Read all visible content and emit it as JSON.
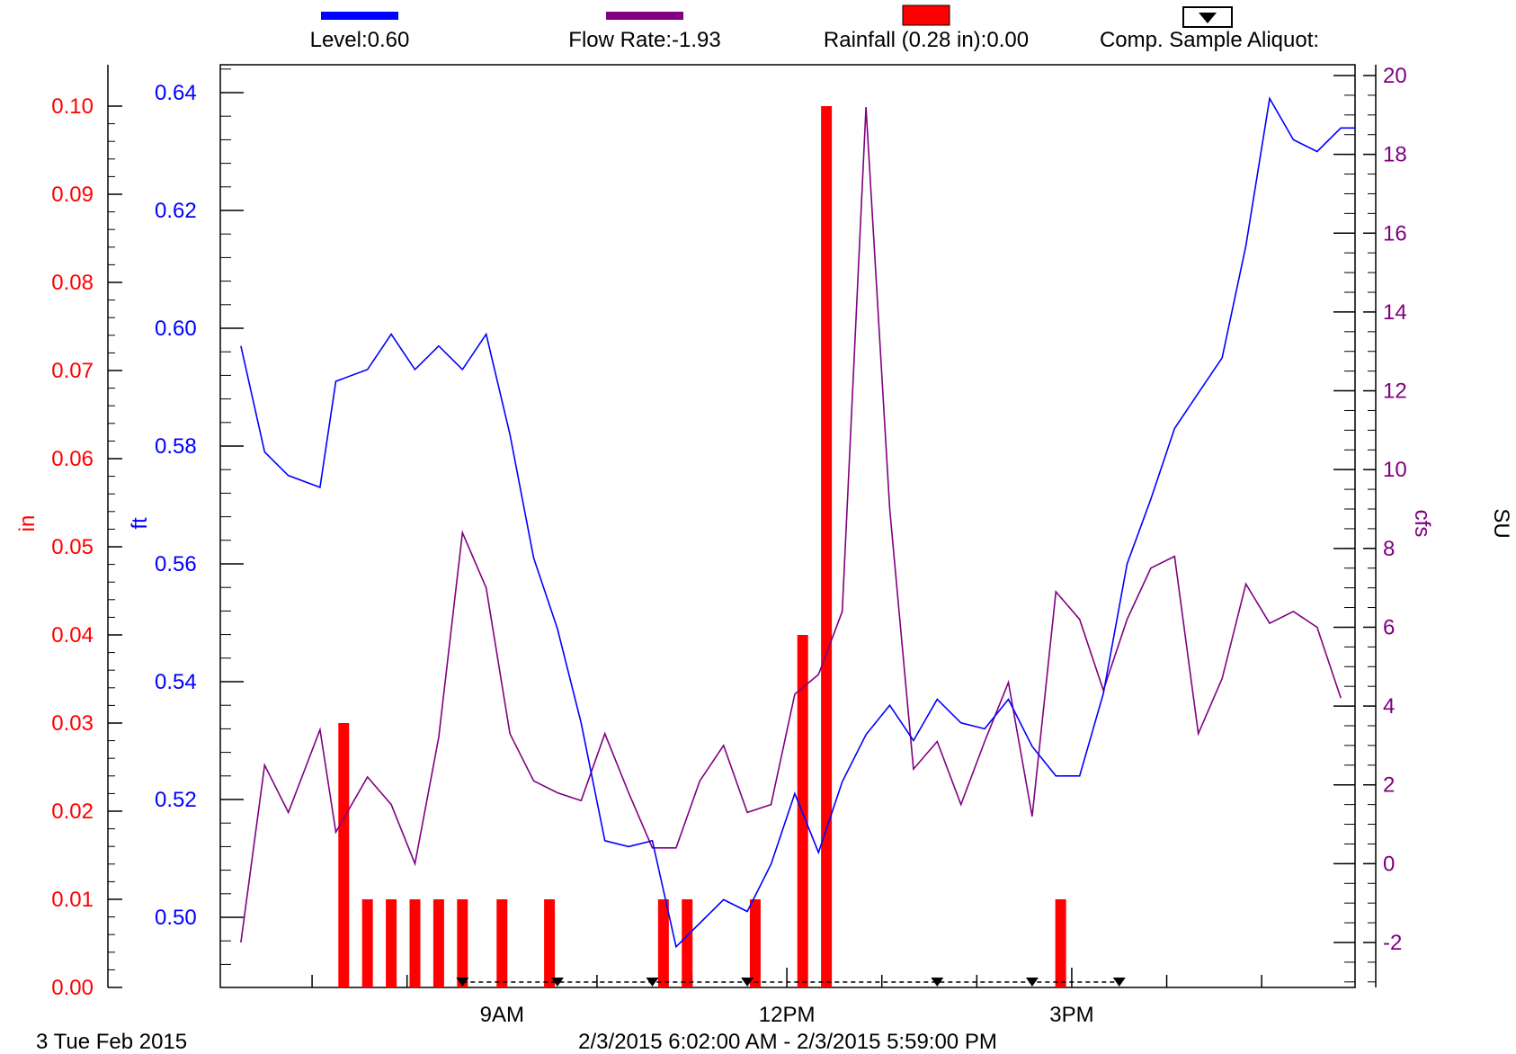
{
  "legend": [
    {
      "id": "level",
      "label": "Level:0.60",
      "color": "#0000ff",
      "kind": "line"
    },
    {
      "id": "flow",
      "label": "Flow Rate:-1.93",
      "color": "#800080",
      "kind": "line"
    },
    {
      "id": "rain",
      "label": "Rainfall (0.28 in):0.00",
      "color": "#ff0000",
      "kind": "bar"
    },
    {
      "id": "comp",
      "label": "Comp. Sample Aliquot:",
      "color": "#000000",
      "kind": "marker"
    }
  ],
  "footer": {
    "date": "3 Tue Feb 2015",
    "range": "2/3/2015 6:02:00 AM - 2/3/2015 5:59:00 PM"
  },
  "chart_data": {
    "type": "line",
    "x_unit": "time",
    "x_range": [
      "06:02",
      "17:59"
    ],
    "x_ticks": [
      {
        "time": "09:00",
        "label": "9AM"
      },
      {
        "time": "12:00",
        "label": "12PM"
      },
      {
        "time": "15:00",
        "label": "3PM"
      }
    ],
    "axes": {
      "rain": {
        "label": "in",
        "color": "#ff0000",
        "range": [
          0,
          0.1
        ],
        "ticks": [
          "0.00",
          "0.01",
          "0.02",
          "0.03",
          "0.04",
          "0.05",
          "0.06",
          "0.07",
          "0.08",
          "0.09",
          "0.10"
        ]
      },
      "level": {
        "label": "ft",
        "color": "#0000ff",
        "range": [
          0.5,
          0.64
        ],
        "ticks": [
          "0.50",
          "0.52",
          "0.54",
          "0.56",
          "0.58",
          "0.60",
          "0.62",
          "0.64"
        ]
      },
      "flow": {
        "label": "cfs",
        "color": "#800080",
        "range": [
          -2,
          20
        ],
        "ticks": [
          "-2",
          "0",
          "2",
          "4",
          "6",
          "8",
          "10",
          "12",
          "14",
          "16",
          "18",
          "20"
        ]
      },
      "su": {
        "label": "SU",
        "color": "#000000"
      }
    },
    "grid": false,
    "series": [
      {
        "name": "Level",
        "axis": "level",
        "color": "#0000ff",
        "points": [
          [
            "06:15",
            0.597
          ],
          [
            "06:30",
            0.579
          ],
          [
            "06:45",
            0.575
          ],
          [
            "07:05",
            0.573
          ],
          [
            "07:15",
            0.591
          ],
          [
            "07:35",
            0.593
          ],
          [
            "07:50",
            0.599
          ],
          [
            "08:05",
            0.593
          ],
          [
            "08:20",
            0.597
          ],
          [
            "08:35",
            0.593
          ],
          [
            "08:50",
            0.599
          ],
          [
            "09:05",
            0.582
          ],
          [
            "09:20",
            0.561
          ],
          [
            "09:35",
            0.549
          ],
          [
            "09:50",
            0.533
          ],
          [
            "10:05",
            0.513
          ],
          [
            "10:20",
            0.512
          ],
          [
            "10:35",
            0.513
          ],
          [
            "10:50",
            0.495
          ],
          [
            "11:05",
            0.499
          ],
          [
            "11:20",
            0.503
          ],
          [
            "11:35",
            0.501
          ],
          [
            "11:50",
            0.509
          ],
          [
            "12:05",
            0.521
          ],
          [
            "12:20",
            0.511
          ],
          [
            "12:35",
            0.523
          ],
          [
            "12:50",
            0.531
          ],
          [
            "13:05",
            0.536
          ],
          [
            "13:20",
            0.53
          ],
          [
            "13:35",
            0.537
          ],
          [
            "13:50",
            0.533
          ],
          [
            "14:05",
            0.532
          ],
          [
            "14:20",
            0.537
          ],
          [
            "14:35",
            0.529
          ],
          [
            "14:50",
            0.524
          ],
          [
            "15:05",
            0.524
          ],
          [
            "15:20",
            0.538
          ],
          [
            "15:35",
            0.56
          ],
          [
            "15:50",
            0.571
          ],
          [
            "16:05",
            0.583
          ],
          [
            "16:20",
            0.589
          ],
          [
            "16:35",
            0.595
          ],
          [
            "16:50",
            0.614
          ],
          [
            "17:05",
            0.639
          ],
          [
            "17:20",
            0.632
          ],
          [
            "17:35",
            0.63
          ],
          [
            "17:50",
            0.634
          ],
          [
            "17:59",
            0.634
          ]
        ]
      },
      {
        "name": "Flow Rate",
        "axis": "flow",
        "color": "#800080",
        "points": [
          [
            "06:15",
            -2.0
          ],
          [
            "06:30",
            2.5
          ],
          [
            "06:45",
            1.3
          ],
          [
            "07:05",
            3.4
          ],
          [
            "07:15",
            0.8
          ],
          [
            "07:35",
            2.2
          ],
          [
            "07:50",
            1.5
          ],
          [
            "08:05",
            0.0
          ],
          [
            "08:20",
            3.2
          ],
          [
            "08:35",
            8.4
          ],
          [
            "08:50",
            7.0
          ],
          [
            "09:05",
            3.3
          ],
          [
            "09:20",
            2.1
          ],
          [
            "09:35",
            1.8
          ],
          [
            "09:50",
            1.6
          ],
          [
            "10:05",
            3.3
          ],
          [
            "10:20",
            1.8
          ],
          [
            "10:35",
            0.4
          ],
          [
            "10:50",
            0.4
          ],
          [
            "11:05",
            2.1
          ],
          [
            "11:20",
            3.0
          ],
          [
            "11:35",
            1.3
          ],
          [
            "11:50",
            1.5
          ],
          [
            "12:05",
            4.3
          ],
          [
            "12:20",
            4.8
          ],
          [
            "12:35",
            6.4
          ],
          [
            "12:50",
            19.2
          ],
          [
            "13:05",
            9.0
          ],
          [
            "13:20",
            2.4
          ],
          [
            "13:35",
            3.1
          ],
          [
            "13:50",
            1.5
          ],
          [
            "14:05",
            3.1
          ],
          [
            "14:20",
            4.6
          ],
          [
            "14:35",
            1.2
          ],
          [
            "14:50",
            6.9
          ],
          [
            "15:05",
            6.2
          ],
          [
            "15:20",
            4.4
          ],
          [
            "15:35",
            6.2
          ],
          [
            "15:50",
            7.5
          ],
          [
            "16:05",
            7.8
          ],
          [
            "16:20",
            3.3
          ],
          [
            "16:35",
            4.7
          ],
          [
            "16:50",
            7.1
          ],
          [
            "17:05",
            6.1
          ],
          [
            "17:20",
            6.4
          ],
          [
            "17:35",
            6.0
          ],
          [
            "17:50",
            4.2
          ]
        ]
      },
      {
        "name": "Rainfall",
        "axis": "rain",
        "color": "#ff0000",
        "type": "bar",
        "points": [
          [
            "07:20",
            0.03
          ],
          [
            "07:35",
            0.01
          ],
          [
            "07:50",
            0.01
          ],
          [
            "08:05",
            0.01
          ],
          [
            "08:20",
            0.01
          ],
          [
            "08:35",
            0.01
          ],
          [
            "09:00",
            0.01
          ],
          [
            "09:30",
            0.01
          ],
          [
            "10:42",
            0.01
          ],
          [
            "10:57",
            0.01
          ],
          [
            "11:40",
            0.01
          ],
          [
            "12:10",
            0.04
          ],
          [
            "12:25",
            0.1
          ],
          [
            "14:53",
            0.01
          ]
        ]
      },
      {
        "name": "Comp. Sample Aliquot",
        "axis": "su",
        "color": "#000000",
        "type": "marker",
        "points": [
          "08:35",
          "09:35",
          "10:35",
          "11:35",
          "13:35",
          "14:35",
          "15:30"
        ]
      }
    ]
  }
}
